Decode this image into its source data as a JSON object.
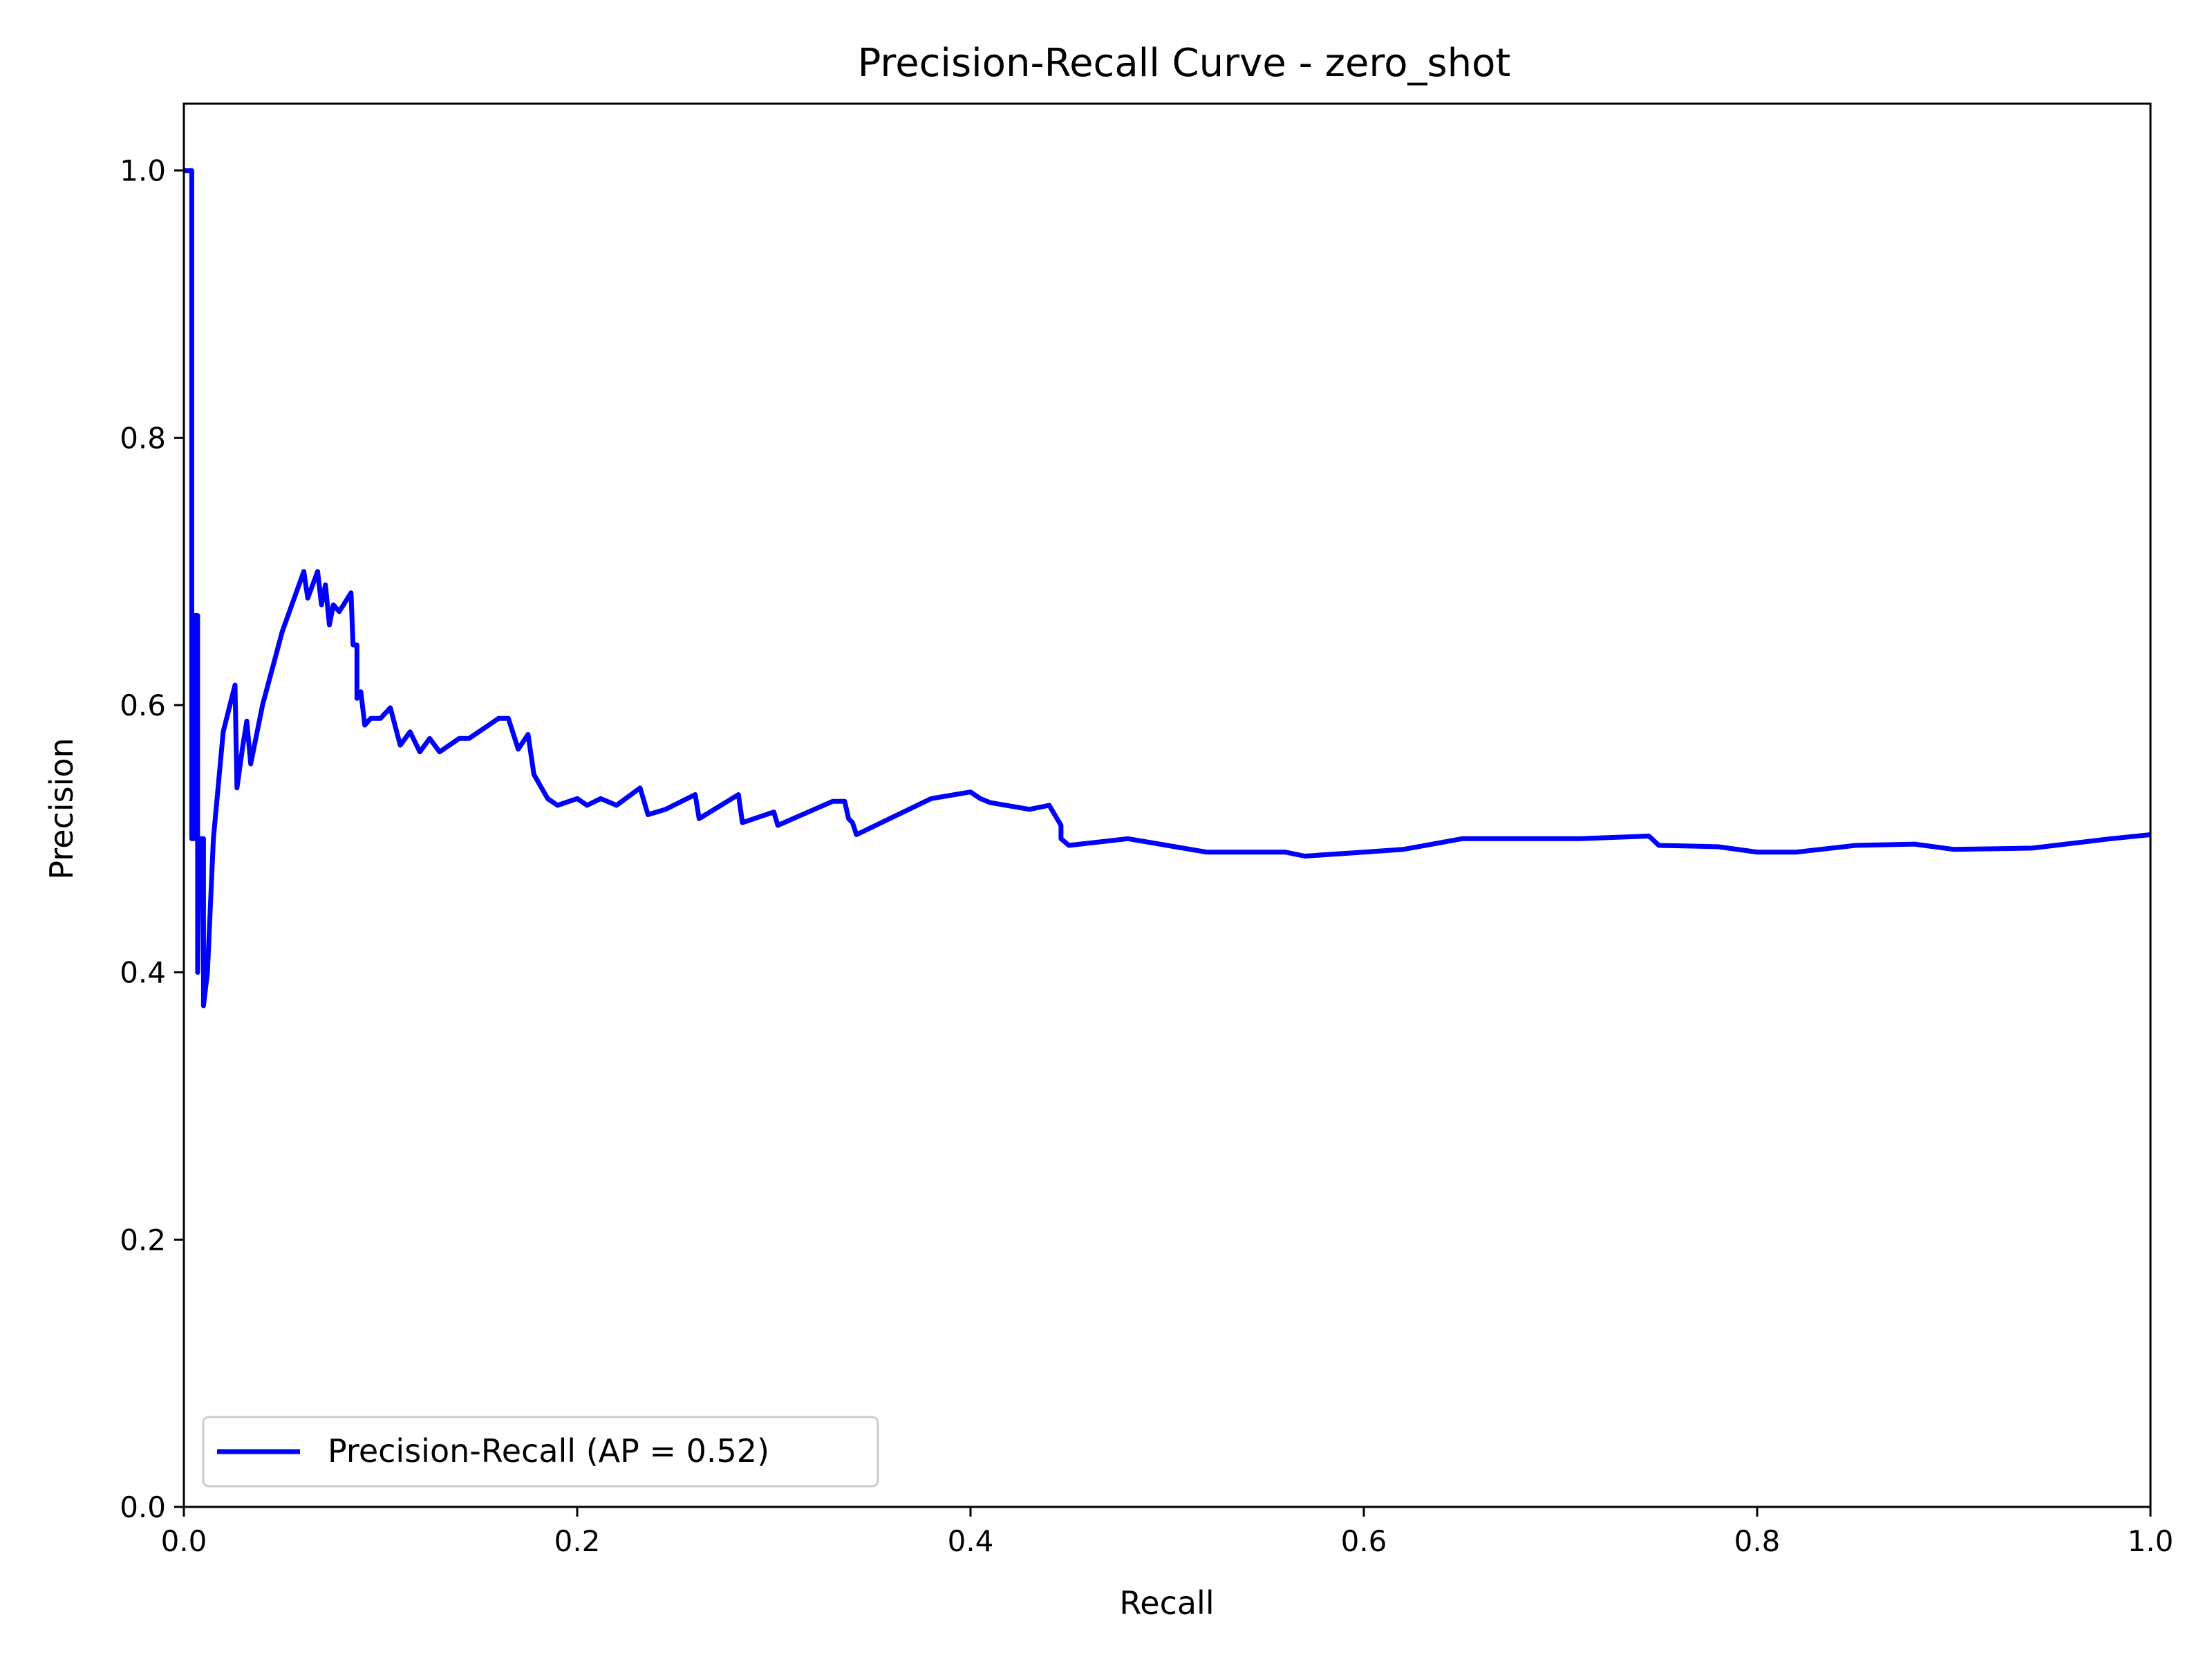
{
  "chart_data": {
    "type": "line",
    "title": "Precision-Recall Curve - zero_shot",
    "xlabel": "Recall",
    "ylabel": "Precision",
    "xlim": [
      0.0,
      1.0
    ],
    "ylim": [
      0.0,
      1.05
    ],
    "xticks": [
      "0.0",
      "0.2",
      "0.4",
      "0.6",
      "0.8",
      "1.0"
    ],
    "yticks": [
      "0.0",
      "0.2",
      "0.4",
      "0.6",
      "0.8",
      "1.0"
    ],
    "grid": false,
    "legend_position": "lower-left",
    "series": [
      {
        "name": "Precision-Recall (AP = 0.52)",
        "color": "#0000ff",
        "x": [
          0.0,
          0.0,
          0.004,
          0.004,
          0.005,
          0.005,
          0.007,
          0.007,
          0.008,
          0.01,
          0.01,
          0.012,
          0.015,
          0.02,
          0.026,
          0.027,
          0.03,
          0.032,
          0.034,
          0.04,
          0.05,
          0.061,
          0.063,
          0.068,
          0.07,
          0.072,
          0.074,
          0.076,
          0.079,
          0.085,
          0.086,
          0.088,
          0.088,
          0.09,
          0.092,
          0.095,
          0.1,
          0.105,
          0.11,
          0.115,
          0.12,
          0.125,
          0.13,
          0.14,
          0.145,
          0.155,
          0.16,
          0.165,
          0.17,
          0.175,
          0.178,
          0.185,
          0.19,
          0.2,
          0.205,
          0.212,
          0.22,
          0.232,
          0.236,
          0.245,
          0.26,
          0.262,
          0.282,
          0.284,
          0.3,
          0.302,
          0.33,
          0.336,
          0.338,
          0.34,
          0.342,
          0.38,
          0.4,
          0.405,
          0.41,
          0.43,
          0.44,
          0.446,
          0.446,
          0.45,
          0.48,
          0.5,
          0.52,
          0.56,
          0.57,
          0.6,
          0.62,
          0.65,
          0.66,
          0.7,
          0.71,
          0.745,
          0.75,
          0.78,
          0.8,
          0.82,
          0.85,
          0.88,
          0.9,
          0.94,
          0.98,
          1.0
        ],
        "y": [
          1.0,
          1.0,
          1.0,
          0.5,
          0.5,
          0.667,
          0.667,
          0.4,
          0.5,
          0.5,
          0.375,
          0.4,
          0.5,
          0.58,
          0.615,
          0.538,
          0.57,
          0.588,
          0.556,
          0.6,
          0.655,
          0.7,
          0.68,
          0.7,
          0.675,
          0.69,
          0.66,
          0.675,
          0.67,
          0.684,
          0.645,
          0.645,
          0.605,
          0.61,
          0.585,
          0.59,
          0.59,
          0.598,
          0.57,
          0.58,
          0.565,
          0.575,
          0.565,
          0.575,
          0.575,
          0.585,
          0.59,
          0.59,
          0.567,
          0.578,
          0.548,
          0.53,
          0.525,
          0.53,
          0.525,
          0.53,
          0.525,
          0.538,
          0.518,
          0.522,
          0.533,
          0.515,
          0.533,
          0.512,
          0.52,
          0.51,
          0.528,
          0.528,
          0.515,
          0.512,
          0.503,
          0.53,
          0.535,
          0.53,
          0.527,
          0.522,
          0.525,
          0.51,
          0.5,
          0.495,
          0.5,
          0.495,
          0.49,
          0.49,
          0.487,
          0.49,
          0.492,
          0.5,
          0.5,
          0.5,
          0.5,
          0.502,
          0.495,
          0.494,
          0.49,
          0.49,
          0.495,
          0.496,
          0.492,
          0.493,
          0.5,
          0.503
        ]
      }
    ]
  }
}
